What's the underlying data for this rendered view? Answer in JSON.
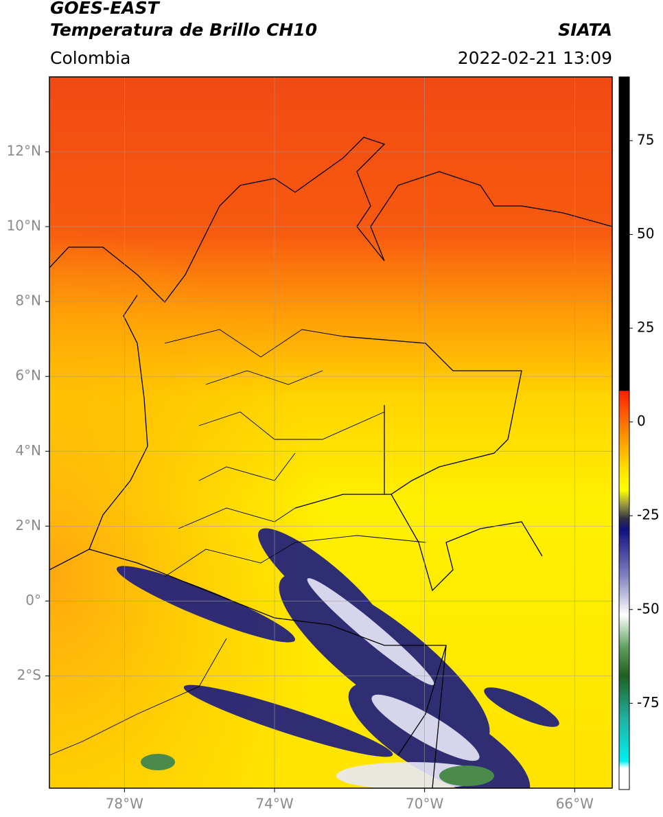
{
  "header": {
    "title": "GOES-EAST",
    "subtitle": "Temperatura de Brillo CH10",
    "source": "SIATA",
    "region": "Colombia",
    "datetime": "2022-02-21 13:09"
  },
  "map": {
    "xlim": [
      -80,
      -65
    ],
    "ylim": [
      -5,
      14
    ],
    "xticks": [
      {
        "value": -78,
        "label": "78°W"
      },
      {
        "value": -74,
        "label": "74°W"
      },
      {
        "value": -70,
        "label": "70°W"
      },
      {
        "value": -66,
        "label": "66°W"
      }
    ],
    "yticks": [
      {
        "value": 12,
        "label": "12°N"
      },
      {
        "value": 10,
        "label": "10°N"
      },
      {
        "value": 8,
        "label": "8°N"
      },
      {
        "value": 6,
        "label": "6°N"
      },
      {
        "value": 4,
        "label": "4°N"
      },
      {
        "value": 2,
        "label": "2°N"
      },
      {
        "value": 0,
        "label": "0°"
      },
      {
        "value": -2,
        "label": "2°S"
      }
    ],
    "grid": true
  },
  "colorbar": {
    "lim": [
      -98,
      92
    ],
    "ticks": [
      75,
      50,
      25,
      0,
      -25,
      -50,
      -75
    ]
  }
}
